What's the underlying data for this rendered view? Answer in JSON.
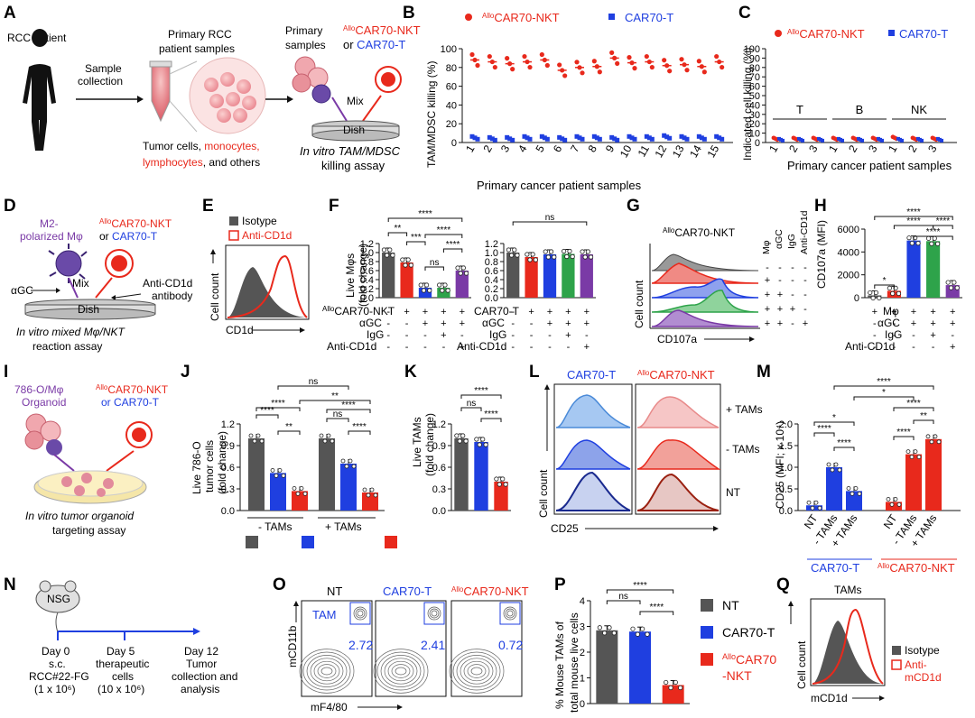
{
  "colors": {
    "red": "#e8291c",
    "blue": "#1f3fe0",
    "purple": "#7a3aa6",
    "green": "#2ea34a",
    "gray": "#555555"
  },
  "panels": {
    "A": {
      "label": "A",
      "patient": "RCC patient",
      "sample_collection": [
        "Sample",
        "collection"
      ],
      "primary_samples_title": [
        "Primary RCC",
        "patient samples"
      ],
      "cells_text": {
        "tumor": "Tumor cells, ",
        "monocytes": "monocytes,",
        "lymphocytes": "lymphocytes",
        "rest": ", and others"
      },
      "prim": [
        "Primary",
        "samples"
      ],
      "nkt": "CAR70-NKT",
      "allo": "Allo",
      "or": "or ",
      "cart": "CAR70-T",
      "mix": "Mix",
      "dish": "Dish",
      "assay": [
        "In vitro TAM/MDSC",
        "killing assay"
      ]
    },
    "B": {
      "label": "B",
      "legend_nkt": "CAR70-NKT",
      "legend_allo": "Allo",
      "legend_t": "CAR70-T",
      "ylabel": "TAM/MDSC killing (%)",
      "xlabel": "Primary cancer patient samples"
    },
    "C": {
      "label": "C",
      "legend_nkt": "CAR70-NKT",
      "legend_allo": "Allo",
      "legend_t": "CAR70-T",
      "ylabel": "Indicated cell killing (%)",
      "xlabel": "Primary cancer patient samples",
      "groups": [
        "T",
        "B",
        "NK"
      ]
    },
    "D": {
      "label": "D",
      "m2": [
        "M2-",
        "polarized Mφ"
      ],
      "allo": "Allo",
      "nkt": "CAR70-NKT",
      "or": "or ",
      "cart": "CAR70-T",
      "agc": "αGC",
      "mix": "Mix",
      "anti": [
        "Anti-CD1d",
        "antibody"
      ],
      "dish": "Dish",
      "assay": [
        "In vitro mixed Mφ/NKT",
        "reaction assay"
      ]
    },
    "E": {
      "label": "E",
      "legend": [
        "Isotype",
        "Anti-CD1d"
      ],
      "ylabel": "Cell count",
      "xlabel": "CD1d"
    },
    "F": {
      "label": "F",
      "ylabel": [
        "Live Mφs",
        "(fold change)"
      ],
      "rows1": [
        "CAR70-NKT",
        "αGC",
        "IgG",
        "Anti-CD1d"
      ],
      "allo": "Allo",
      "rows2": [
        "CAR70-T",
        "αGC",
        "IgG",
        "Anti-CD1d"
      ],
      "sig1": [
        "**",
        "****",
        "***",
        "****",
        "ns",
        "****"
      ],
      "sig2": "ns"
    },
    "G": {
      "label": "G",
      "title": "CAR70-NKT",
      "allo": "Allo",
      "cols": [
        "Mφ",
        "αGC",
        "IgG",
        "Anti-CD1d"
      ],
      "ylabel": "Cell count",
      "xlabel": "CD107a"
    },
    "H": {
      "label": "H",
      "ylabel": "CD107a (MFI)",
      "rows": [
        "Mφ",
        "αGC",
        "IgG",
        "Anti-CD1d"
      ],
      "sig": [
        "****",
        "****",
        "****",
        "****",
        "*"
      ]
    },
    "I": {
      "label": "I",
      "org": [
        "786-O/Mφ",
        "Organoid"
      ],
      "allo": "Allo",
      "nkt": "CAR70-NKT",
      "or": "or CAR70-T",
      "assay": [
        "In vitro tumor organoid",
        "targeting assay"
      ]
    },
    "J": {
      "label": "J",
      "ylabel": [
        "Live 786-O",
        "tumor cells",
        "(fold change)"
      ],
      "groups": [
        "- TAMs",
        "+ TAMs"
      ],
      "sig": [
        "ns",
        "**",
        "****",
        "****",
        "**",
        "ns",
        "****",
        "****"
      ]
    },
    "K": {
      "label": "K",
      "ylabel": [
        "Live TAMs",
        "(fold change)"
      ],
      "sig": [
        "****",
        "ns",
        "****"
      ]
    },
    "legend_JK": {
      "nt": "NT",
      "cart": "CAR70-T",
      "allo": "Allo",
      "nkt": "CAR70-NKT"
    },
    "L": {
      "label": "L",
      "cart": "CAR70-T",
      "allo": "Allo",
      "nkt": "CAR70-NKT",
      "rows": [
        "+ TAMs",
        "- TAMs",
        "NT"
      ],
      "ylabel": "Cell count",
      "xlabel": "CD25"
    },
    "M": {
      "label": "M",
      "ylabel": "CD25 (MFI; x 10⁴)",
      "xt": [
        "NT",
        "- TAMs",
        "+ TAMs",
        "NT",
        "- TAMs",
        "+ TAMs"
      ],
      "grp1": "CAR70-T",
      "allo": "Allo",
      "grp2": "CAR70-NKT",
      "sig": [
        "*",
        "****",
        "*",
        "****",
        "****",
        "****",
        "****",
        "**"
      ]
    },
    "N": {
      "label": "N",
      "mouse": "NSG",
      "day0": [
        "Day 0",
        "s.c.",
        "RCC#22-FG",
        "(1 x 10⁶)"
      ],
      "day5": [
        "Day 5",
        "therapeutic",
        "cells",
        "(10 x 10⁶)"
      ],
      "day12": [
        "Day 12",
        "Tumor",
        "collection and",
        "analysis"
      ]
    },
    "O": {
      "label": "O",
      "titles": [
        "NT",
        "CAR70-T",
        "CAR70-NKT"
      ],
      "allo": "Allo",
      "tam": "TAM",
      "values": [
        "2.72",
        "2.41",
        "0.72"
      ],
      "ylabel": "mCD11b",
      "xlabel": "mF4/80"
    },
    "P": {
      "label": "P",
      "ylabel": [
        "% Mouse TAMs of",
        "total mouse live cells"
      ],
      "sig": [
        "****",
        "ns",
        "****"
      ],
      "legend": [
        "NT",
        "CAR70-T",
        "CAR70",
        "-NKT"
      ],
      "allo": "Allo"
    },
    "Q": {
      "label": "Q",
      "title": "TAMs",
      "legend": [
        "Isotype",
        "Anti-",
        "mCD1d"
      ],
      "ylabel": "Cell count",
      "xlabel": "mCD1d"
    }
  },
  "chart_data": [
    {
      "type": "scatter",
      "title": "B",
      "ylabel": "TAM/MDSC killing (%)",
      "xlabel": "Primary cancer patient samples",
      "ylim": [
        0,
        100
      ],
      "categories": [
        "1",
        "2",
        "3",
        "4",
        "5",
        "6",
        "7",
        "8",
        "9",
        "10",
        "11",
        "12",
        "13",
        "14",
        "15"
      ],
      "series": [
        {
          "name": "AlloCAR70-NKT",
          "values": [
            88,
            86,
            84,
            86,
            88,
            77,
            80,
            81,
            90,
            85,
            86,
            82,
            83,
            81,
            86
          ]
        },
        {
          "name": "CAR70-T",
          "values": [
            5,
            4,
            4,
            5,
            5,
            4,
            5,
            5,
            4,
            5,
            5,
            6,
            5,
            5,
            5
          ]
        }
      ]
    },
    {
      "type": "scatter",
      "title": "C",
      "ylabel": "Indicated cell killing (%)",
      "xlabel": "Primary cancer patient samples",
      "ylim": [
        0,
        100
      ],
      "categories": [
        "T1",
        "T2",
        "T3",
        "B1",
        "B2",
        "B3",
        "NK1",
        "NK2",
        "NK3"
      ],
      "series": [
        {
          "name": "AlloCAR70-NKT",
          "values": [
            4,
            4,
            4,
            4,
            4,
            4,
            5,
            4,
            4
          ]
        },
        {
          "name": "CAR70-T",
          "values": [
            3,
            3,
            3,
            3,
            3,
            3,
            3,
            3,
            3
          ]
        }
      ]
    },
    {
      "type": "bar",
      "title": "F-left",
      "ylabel": "Live Mφs (fold change)",
      "ylim": [
        0,
        1.2
      ],
      "categories": [
        "1",
        "2",
        "3",
        "4",
        "5"
      ],
      "values": [
        1.0,
        0.78,
        0.22,
        0.22,
        0.6
      ]
    },
    {
      "type": "bar",
      "title": "F-right",
      "ylabel": "Live Mφs (fold change)",
      "ylim": [
        0,
        1.2
      ],
      "categories": [
        "1",
        "2",
        "3",
        "4",
        "5"
      ],
      "values": [
        1.0,
        0.9,
        0.96,
        0.97,
        0.96
      ]
    },
    {
      "type": "bar",
      "title": "H",
      "ylabel": "CD107a (MFI)",
      "ylim": [
        0,
        6000
      ],
      "ticks": [
        0,
        2000,
        4000,
        6000
      ],
      "categories": [
        "1",
        "2",
        "3",
        "4",
        "5"
      ],
      "values": [
        200,
        600,
        5000,
        4950,
        1100
      ]
    },
    {
      "type": "bar",
      "title": "J",
      "ylabel": "Live 786-O tumor cells (fold change)",
      "ylim": [
        0,
        1.2
      ],
      "ticks": [
        0,
        0.3,
        0.6,
        0.9,
        1.2
      ],
      "categories": [
        "- TAMs",
        "+ TAMs"
      ],
      "series": [
        {
          "name": "NT",
          "values": [
            1.0,
            1.0
          ]
        },
        {
          "name": "CAR70-T",
          "values": [
            0.52,
            0.65
          ]
        },
        {
          "name": "AlloCAR70-NKT",
          "values": [
            0.27,
            0.25
          ]
        }
      ]
    },
    {
      "type": "bar",
      "title": "K",
      "ylabel": "Live TAMs (fold change)",
      "ylim": [
        0,
        1.2
      ],
      "ticks": [
        0,
        0.3,
        0.6,
        0.9,
        1.2
      ],
      "categories": [
        "NT",
        "CAR70-T",
        "AlloCAR70-NKT"
      ],
      "values": [
        1.0,
        0.95,
        0.4
      ]
    },
    {
      "type": "bar",
      "title": "M",
      "ylabel": "CD25 (MFI; x 10⁴)",
      "ylim": [
        0,
        2.0
      ],
      "ticks": [
        0,
        0.5,
        1.0,
        1.5,
        2.0
      ],
      "categories": [
        "NT",
        "- TAMs",
        "+ TAMs",
        "NT",
        "- TAMs",
        "+ TAMs"
      ],
      "values": [
        0.12,
        1.0,
        0.45,
        0.2,
        1.3,
        1.65
      ]
    },
    {
      "type": "bar",
      "title": "P",
      "ylabel": "% Mouse TAMs of total mouse live cells",
      "ylim": [
        0,
        4
      ],
      "ticks": [
        0,
        1,
        2,
        3,
        4
      ],
      "categories": [
        "NT",
        "CAR70-T",
        "AlloCAR70-NKT"
      ],
      "values": [
        2.85,
        2.8,
        0.72
      ]
    }
  ]
}
